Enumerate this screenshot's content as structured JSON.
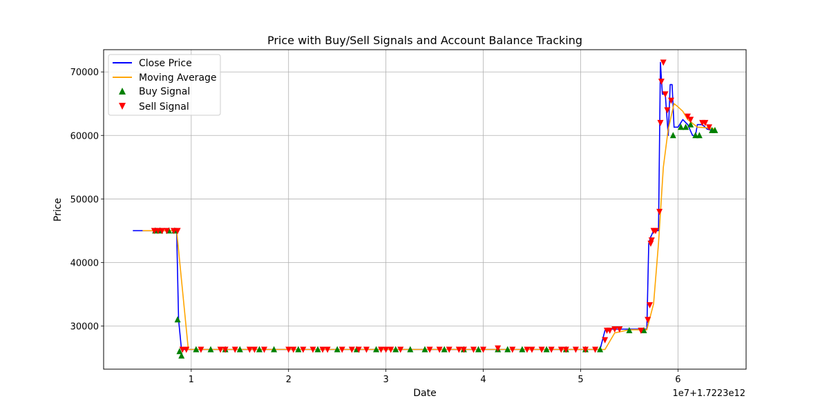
{
  "chart_data": {
    "type": "line",
    "title": "Price with Buy/Sell Signals and Account Balance Tracking",
    "xlabel": "Date",
    "ylabel": "Price",
    "x_offset_label": "1e7+1.7223e12",
    "xlim": [
      0.1,
      6.7
    ],
    "ylim": [
      23200,
      73500
    ],
    "x_ticks": [
      1,
      2,
      3,
      4,
      5,
      6
    ],
    "x_tick_labels": [
      "1",
      "2",
      "3",
      "4",
      "5",
      "6"
    ],
    "y_ticks": [
      30000,
      40000,
      50000,
      60000,
      70000
    ],
    "y_tick_labels": [
      "30000",
      "40000",
      "50000",
      "60000",
      "70000"
    ],
    "grid": true,
    "legend_position": "top-left",
    "colors": {
      "close": "#0000ff",
      "ma": "#ffa500",
      "buy": "#008000",
      "sell": "#ff0000"
    },
    "series": [
      {
        "name": "Close Price",
        "x": [
          0.4,
          0.5,
          0.6,
          0.7,
          0.8,
          0.85,
          0.87,
          0.9,
          1.0,
          1.5,
          2.0,
          3.0,
          4.0,
          5.0,
          5.2,
          5.25,
          5.3,
          5.5,
          5.68,
          5.7,
          5.72,
          5.75,
          5.8,
          5.82,
          5.84,
          5.87,
          5.9,
          5.92,
          5.94,
          5.96,
          5.98,
          6.0,
          6.05,
          6.1,
          6.15,
          6.18,
          6.2,
          6.25,
          6.3,
          6.35,
          6.38
        ],
        "y": [
          45000,
          45000,
          45000,
          45000,
          45000,
          45000,
          31000,
          26300,
          26300,
          26300,
          26300,
          26300,
          26300,
          26300,
          26300,
          29300,
          29500,
          29500,
          29500,
          43000,
          44000,
          45000,
          45000,
          71500,
          66500,
          66500,
          60000,
          68000,
          68000,
          61300,
          61300,
          61300,
          62500,
          61700,
          60000,
          60000,
          61700,
          61700,
          61000,
          60800,
          60800
        ]
      },
      {
        "name": "Moving Average",
        "x": [
          0.5,
          0.85,
          0.97,
          1.5,
          2.0,
          3.0,
          4.0,
          5.0,
          5.25,
          5.35,
          5.5,
          5.68,
          5.75,
          5.8,
          5.85,
          5.9,
          5.96,
          6.0,
          6.05,
          6.1,
          6.2,
          6.3,
          6.38
        ],
        "y": [
          45000,
          45000,
          26300,
          26300,
          26300,
          26300,
          26300,
          26300,
          26300,
          28900,
          29400,
          29400,
          33500,
          43000,
          55000,
          61000,
          65000,
          64500,
          63800,
          62500,
          61300,
          61200,
          61000
        ]
      }
    ],
    "buy_signals": {
      "name": "Buy Signal",
      "x": [
        0.63,
        0.68,
        0.77,
        0.83,
        0.86,
        0.88,
        0.9,
        1.05,
        1.2,
        1.35,
        1.5,
        1.7,
        1.85,
        2.1,
        2.3,
        2.5,
        2.7,
        2.9,
        3.1,
        3.25,
        3.4,
        3.6,
        3.8,
        3.95,
        4.15,
        4.25,
        4.4,
        4.65,
        4.85,
        5.05,
        5.2,
        5.5,
        5.65,
        5.95,
        6.03,
        6.08,
        6.13,
        6.18,
        6.22,
        6.35,
        6.38
      ],
      "y": [
        45000,
        45000,
        45000,
        45000,
        31000,
        26000,
        25300,
        26300,
        26300,
        26300,
        26300,
        26300,
        26300,
        26300,
        26300,
        26300,
        26300,
        26300,
        26300,
        26300,
        26300,
        26300,
        26300,
        26300,
        26300,
        26300,
        26300,
        26300,
        26300,
        26300,
        26300,
        29300,
        29300,
        60000,
        61300,
        61300,
        61700,
        60000,
        60000,
        60800,
        60800
      ]
    },
    "sell_signals": {
      "name": "Sell Signal",
      "x": [
        0.62,
        0.66,
        0.7,
        0.75,
        0.82,
        0.86,
        0.91,
        0.95,
        1.1,
        1.3,
        1.35,
        1.45,
        1.6,
        1.65,
        1.75,
        2.0,
        2.05,
        2.15,
        2.25,
        2.35,
        2.4,
        2.55,
        2.65,
        2.72,
        2.8,
        2.95,
        3.0,
        3.05,
        3.15,
        3.45,
        3.55,
        3.65,
        3.75,
        3.8,
        3.9,
        4.0,
        4.15,
        4.3,
        4.45,
        4.5,
        4.6,
        4.7,
        4.8,
        4.85,
        4.95,
        5.05,
        5.15,
        5.25,
        5.27,
        5.3,
        5.35,
        5.4,
        5.62,
        5.69,
        5.71,
        5.72,
        5.73,
        5.75,
        5.77,
        5.81,
        5.82,
        5.83,
        5.85,
        5.87,
        5.89,
        5.93,
        6.1,
        6.13,
        6.25,
        6.28,
        6.32
      ],
      "y": [
        45000,
        45000,
        45000,
        45000,
        45000,
        45000,
        26300,
        26300,
        26300,
        26300,
        26300,
        26300,
        26300,
        26300,
        26300,
        26300,
        26300,
        26300,
        26300,
        26300,
        26300,
        26300,
        26300,
        26300,
        26300,
        26300,
        26300,
        26300,
        26300,
        26300,
        26300,
        26300,
        26300,
        26300,
        26300,
        26300,
        26500,
        26300,
        26300,
        26300,
        26300,
        26300,
        26300,
        26300,
        26300,
        26300,
        26300,
        27800,
        29300,
        29300,
        29500,
        29500,
        29300,
        31000,
        33300,
        43000,
        43500,
        45000,
        45000,
        48000,
        62000,
        68500,
        71500,
        66500,
        64000,
        65500,
        63000,
        62500,
        62000,
        62000,
        61300
      ]
    }
  }
}
